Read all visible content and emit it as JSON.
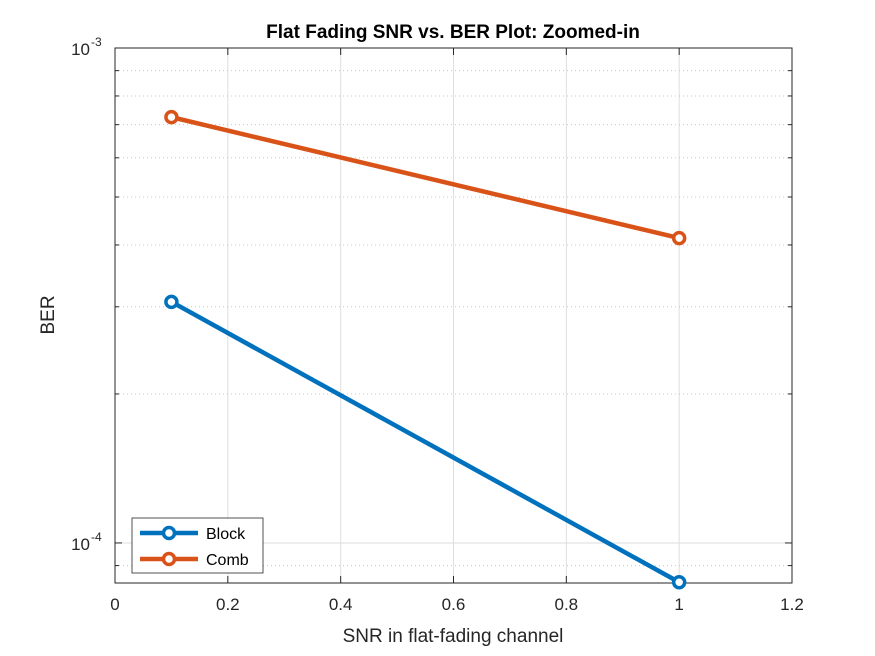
{
  "chart_data": {
    "type": "line",
    "title": "Flat Fading SNR vs. BER Plot: Zoomed-in",
    "xlabel": "SNR in flat-fading channel",
    "ylabel": "BER",
    "xlim": [
      0,
      1.2
    ],
    "ylim": [
      8.3e-05,
      0.001
    ],
    "yscale": "log",
    "grid": true,
    "x_ticks": [
      "0",
      "0.2",
      "0.4",
      "0.6",
      "0.8",
      "1",
      "1.2"
    ],
    "y_ticks": [
      {
        "value": 0.001,
        "base": "10",
        "exp": "-3"
      },
      {
        "value": 0.0001,
        "base": "10",
        "exp": "-4"
      }
    ],
    "legend_position": "bottom-left",
    "series": [
      {
        "name": "Block",
        "color": "#0072BD",
        "x": [
          0.1,
          1
        ],
        "y": [
          0.000307,
          8.33e-05
        ]
      },
      {
        "name": "Comb",
        "color": "#D95319",
        "x": [
          0.1,
          1
        ],
        "y": [
          0.000725,
          0.000413
        ]
      }
    ]
  }
}
